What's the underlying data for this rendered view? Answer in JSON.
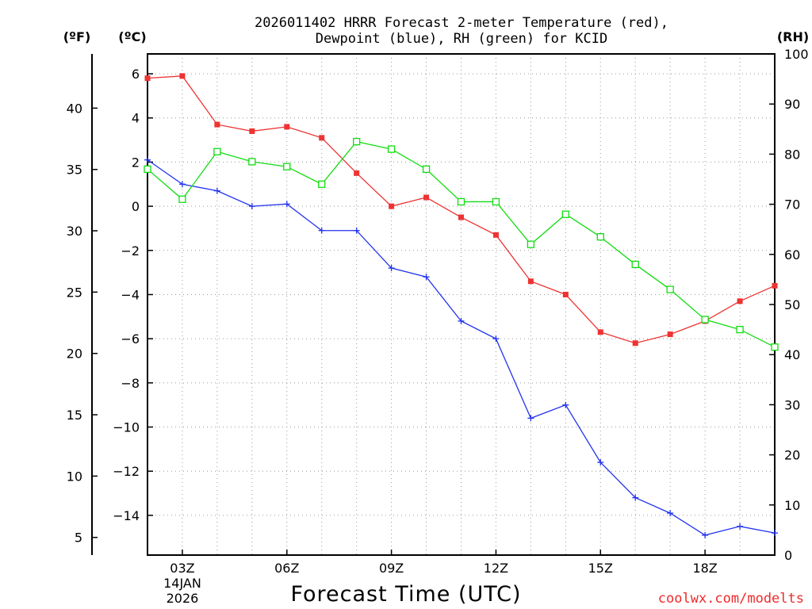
{
  "chart_data": {
    "type": "line",
    "title": [
      "2026011402 HRRR Forecast 2-meter Temperature (red),",
      "Dewpoint (blue), RH (green) for KCID"
    ],
    "xlabel": "Forecast Time (UTC)",
    "units": {
      "fahrenheit": "(ºF)",
      "celsius": "(ºC)",
      "rh": "(RH)"
    },
    "x": [
      2,
      3,
      4,
      5,
      6,
      7,
      8,
      9,
      10,
      11,
      12,
      13,
      14,
      15,
      16,
      17,
      18,
      19,
      20
    ],
    "xlim": [
      2,
      20
    ],
    "x_ticks": [
      {
        "x": 3,
        "label": "03Z",
        "date": "14JAN",
        "year": "2026"
      },
      {
        "x": 6,
        "label": "06Z"
      },
      {
        "x": 9,
        "label": "09Z"
      },
      {
        "x": 12,
        "label": "12Z"
      },
      {
        "x": 15,
        "label": "15Z"
      },
      {
        "x": 18,
        "label": "18Z"
      }
    ],
    "y_celsius": {
      "range": [
        -15.8,
        6.9
      ],
      "ticks": [
        6,
        4,
        2,
        0,
        -2,
        -4,
        -6,
        -8,
        -10,
        -12,
        -14
      ]
    },
    "y_fahrenheit": {
      "range": [
        3.56,
        44.42
      ],
      "ticks": [
        40,
        35,
        30,
        25,
        20,
        15,
        10,
        5
      ]
    },
    "y_rh": {
      "range": [
        0,
        100
      ],
      "ticks": [
        100,
        90,
        80,
        70,
        60,
        50,
        40,
        30,
        20,
        10,
        0
      ]
    },
    "series": [
      {
        "name": "Temperature",
        "axis": "celsius",
        "color": "#ee3333",
        "marker": "filled-square",
        "values": [
          5.8,
          5.9,
          3.7,
          3.4,
          3.6,
          3.1,
          1.5,
          0.0,
          0.4,
          -0.5,
          -1.3,
          -3.4,
          -4.0,
          -5.7,
          -6.2,
          -5.8,
          -5.2,
          -4.3,
          -3.6
        ]
      },
      {
        "name": "Dewpoint",
        "axis": "celsius",
        "color": "#2233ee",
        "marker": "plus",
        "values": [
          2.1,
          1.0,
          0.7,
          0.0,
          0.1,
          -1.1,
          -1.1,
          -2.8,
          -3.2,
          -5.2,
          -6.0,
          -9.6,
          -9.0,
          -11.6,
          -13.2,
          -13.9,
          -14.9,
          -14.5,
          -14.8
        ]
      },
      {
        "name": "RH",
        "axis": "rh",
        "color": "#11dd11",
        "marker": "open-square",
        "values": [
          77,
          71,
          80.5,
          78.5,
          77.5,
          74,
          82.5,
          81,
          77,
          70.5,
          70.5,
          62,
          68,
          63.5,
          58,
          53,
          47,
          45,
          41.5
        ]
      }
    ],
    "credit": "coolwx.com/modelts"
  }
}
